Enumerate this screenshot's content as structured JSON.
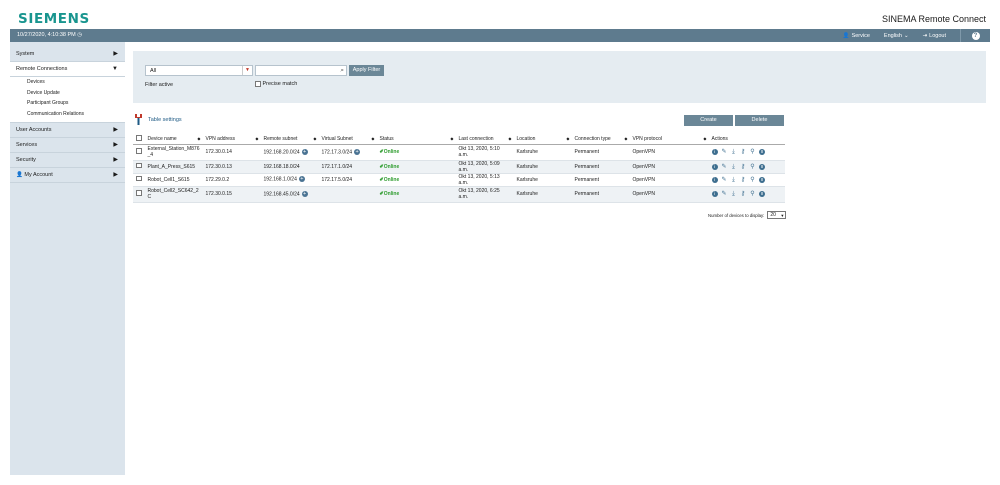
{
  "header": {
    "brand": "SIEMENS",
    "product": "SINEMA Remote Connect"
  },
  "statusbar": {
    "datetime": "10/27/2020, 4:10:38 PM",
    "user": "Service",
    "language": "English",
    "logout": "Logout",
    "help": "?"
  },
  "sidebar": {
    "items": [
      {
        "label": "System",
        "expandable": true
      },
      {
        "label": "Remote Connections",
        "expanded": true,
        "children": [
          "Devices",
          "Device Update",
          "Participant Groups",
          "Communication Relations"
        ]
      },
      {
        "label": "User Accounts",
        "expandable": true
      },
      {
        "label": "Services",
        "expandable": true
      },
      {
        "label": "Security",
        "expandable": true
      },
      {
        "label": "My Account",
        "expandable": true
      }
    ]
  },
  "filter": {
    "select_value": "All",
    "search_value": "",
    "apply_label": "Apply Filter",
    "filter_active_label": "Filter active",
    "precise_match_label": "Precise match"
  },
  "toolbar": {
    "table_settings": "Table settings",
    "create": "Create",
    "delete": "Delete"
  },
  "table": {
    "columns": [
      "Device name",
      "VPN address",
      "Remote subnet",
      "Virtual Subnet",
      "Status",
      "Last connection",
      "Location",
      "Connection type",
      "VPN protocol",
      "Actions"
    ],
    "rows": [
      {
        "name": "External_Station_M876_4",
        "vpn": "172.30.0.14",
        "remote": "192.168.20.0/24",
        "virtual": "172.17.3.0/24",
        "status": "Online",
        "last": "Okt 13, 2020, 5:10 a.m.",
        "location": "Karlsruhe",
        "conn": "Permanent",
        "proto": "OpenVPN"
      },
      {
        "name": "Plant_A_Press_S615",
        "vpn": "172.30.0.13",
        "remote": "192.168.18.0/24",
        "virtual": "172.17.1.0/24",
        "status": "Online",
        "last": "Okt 13, 2020, 5:09 a.m.",
        "location": "Karlsruhe",
        "conn": "Permanent",
        "proto": "OpenVPN"
      },
      {
        "name": "Robot_Cell1_S615",
        "vpn": "172.29.0.2",
        "remote": "192.168.1.0/24",
        "virtual": "172.17.5.0/24",
        "status": "Online",
        "last": "Okt 13, 2020, 5:13 a.m.",
        "location": "Karlsruhe",
        "conn": "Permanent",
        "proto": "OpenVPN"
      },
      {
        "name": "Robot_Cell2_SC642_2C",
        "vpn": "172.30.0.15",
        "remote": "192.168.45.0/24",
        "virtual": "",
        "status": "Online",
        "last": "Okt 13, 2020, 6:25 a.m.",
        "location": "Karlsruhe",
        "conn": "Permanent",
        "proto": "OpenVPN"
      }
    ]
  },
  "pagination": {
    "label": "Number of devices to display:",
    "value": "20"
  },
  "colors": {
    "brand": "#19958f",
    "statusbar": "#5e7b8e",
    "sidebar": "#dbe4ec",
    "panel": "#e5ecf1",
    "button": "#6b8797",
    "online": "#2e9c2e"
  }
}
